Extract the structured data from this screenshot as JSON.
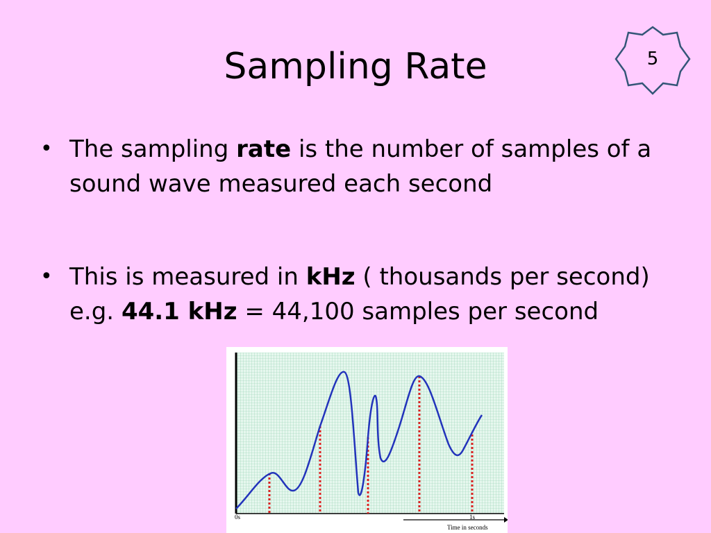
{
  "slide": {
    "title": "Sampling Rate",
    "number": "5"
  },
  "bullets": [
    {
      "before": "The sampling ",
      "bold": "rate",
      "after": "  is the number of samples of a sound wave measured each second"
    },
    {
      "part1": "This is measured in ",
      "bold1": "kHz",
      "part2": " ( thousands per second) e.g. ",
      "bold2": "44.1 kHz",
      "part3": " = 44,100 samples per second"
    }
  ],
  "figure": {
    "x_start_label": "0s",
    "x_end_label": "1s",
    "axis_label": "Time in seconds",
    "grid_color": "#cfeee0",
    "wave_color": "#2233bb",
    "sample_color": "#dd2222"
  },
  "colors": {
    "background": "#ffccff"
  }
}
